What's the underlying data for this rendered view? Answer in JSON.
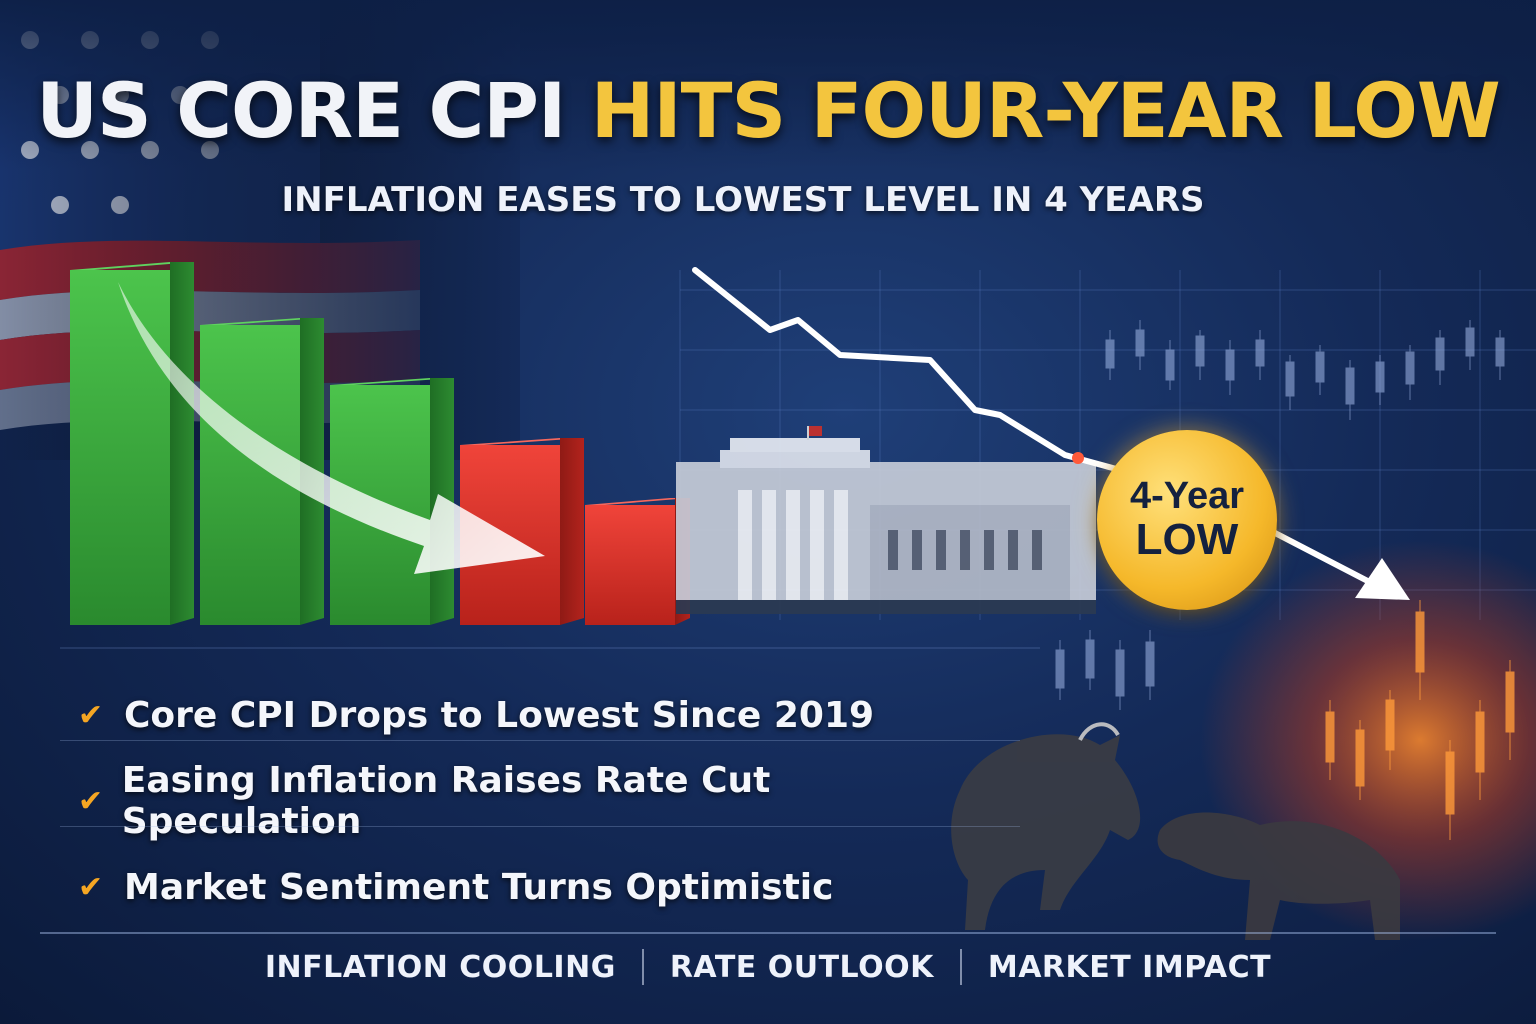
{
  "headline": {
    "part1": "US CORE CPI",
    "part2": "HITS FOUR-YEAR LOW"
  },
  "subheadline": "INFLATION EASES TO LOWEST LEVEL IN 4 YEARS",
  "badge": {
    "line1": "4-Year",
    "line2": "LOW"
  },
  "bullets": [
    "Core CPI Drops to Lowest Since 2019",
    "Easing Inflation Raises Rate Cut Speculation",
    "Market Sentiment Turns Optimistic"
  ],
  "footer": [
    "INFLATION COOLING",
    "RATE OUTLOOK",
    "MARKET IMPACT"
  ],
  "colors": {
    "background": "#142a58",
    "accent_gold": "#f3c53e",
    "bar_green": "#3cb043",
    "bar_red": "#e53228",
    "check_orange": "#f5a623"
  },
  "icons": [
    "us-flag",
    "check-icon",
    "down-arrow",
    "federal-reserve-building",
    "bull",
    "bear",
    "candlestick-chart"
  ]
}
